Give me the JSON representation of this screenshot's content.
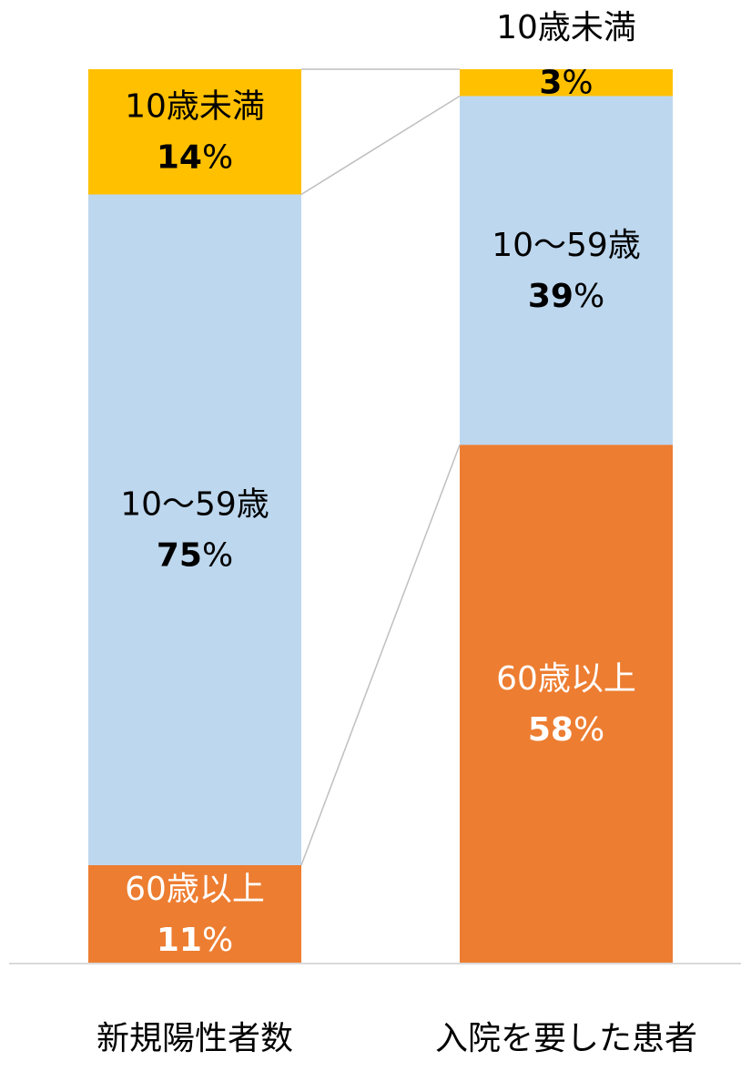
{
  "chart_data": {
    "type": "stacked_bar",
    "categories": [
      "新規陽性者数",
      "入院を要した患者"
    ],
    "series": [
      {
        "name": "60歳以上",
        "color": "#ED7D31",
        "text_color": "#ffffff",
        "values": [
          11,
          58
        ],
        "value_labels": [
          "11%",
          "58%"
        ]
      },
      {
        "name": "10～59歳",
        "color": "#BDD7EE",
        "text_color": "#000000",
        "values": [
          75,
          39
        ],
        "value_labels": [
          "75%",
          "39%"
        ]
      },
      {
        "name": "10歳未満",
        "color": "#FFC000",
        "text_color": "#000000",
        "values": [
          14,
          3
        ],
        "value_labels": [
          "14%",
          "3%"
        ]
      }
    ],
    "ylim": [
      0,
      100
    ]
  }
}
